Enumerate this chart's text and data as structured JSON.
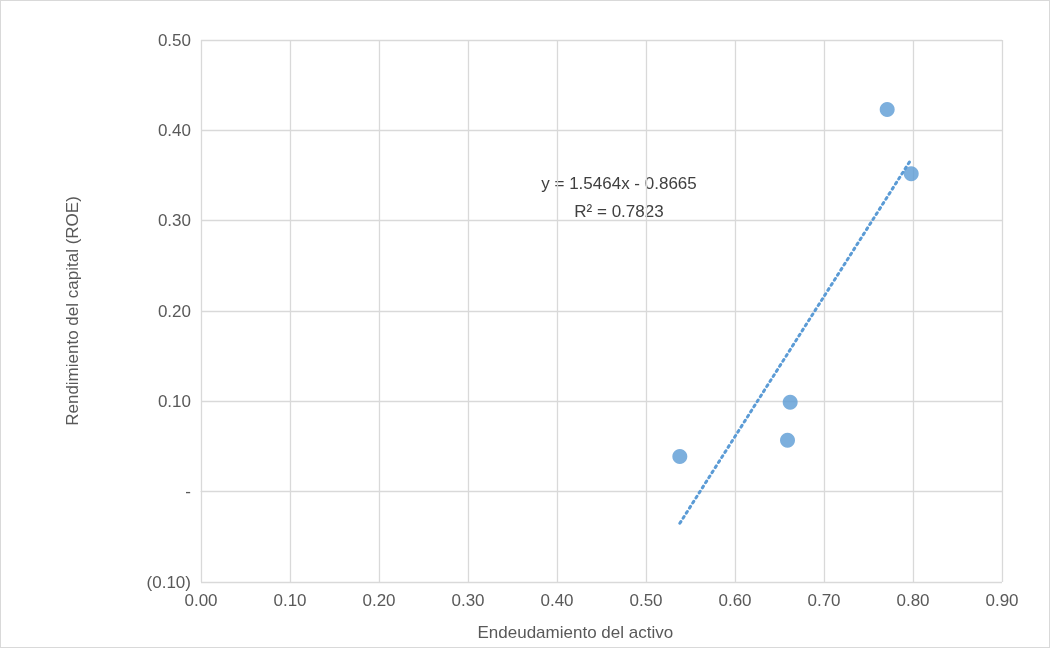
{
  "chart_data": {
    "type": "scatter",
    "xlabel": "Endeudamiento del activo",
    "ylabel": "Rendimiento del capital (ROE)",
    "xlim": [
      0,
      0.9
    ],
    "ylim": [
      -0.1,
      0.5
    ],
    "xticks": [
      {
        "value": 0,
        "label": "0.00"
      },
      {
        "value": 0.1,
        "label": "0.10"
      },
      {
        "value": 0.2,
        "label": "0.20"
      },
      {
        "value": 0.3,
        "label": "0.30"
      },
      {
        "value": 0.4,
        "label": "0.40"
      },
      {
        "value": 0.5,
        "label": "0.50"
      },
      {
        "value": 0.6,
        "label": "0.60"
      },
      {
        "value": 0.7,
        "label": "0.70"
      },
      {
        "value": 0.8,
        "label": "0.80"
      },
      {
        "value": 0.9,
        "label": "0.90"
      }
    ],
    "yticks": [
      {
        "value": -0.1,
        "label": "(0.10)"
      },
      {
        "value": 0,
        "label": "-"
      },
      {
        "value": 0.1,
        "label": "0.10"
      },
      {
        "value": 0.2,
        "label": "0.20"
      },
      {
        "value": 0.3,
        "label": "0.30"
      },
      {
        "value": 0.4,
        "label": "0.40"
      },
      {
        "value": 0.5,
        "label": "0.50"
      }
    ],
    "grid": true,
    "marker": "circle",
    "series": [
      {
        "color": "#5b9bd5",
        "x": [
          0.538,
          0.659,
          0.662,
          0.771,
          0.798
        ],
        "values": [
          0.039,
          0.057,
          0.099,
          0.423,
          0.352
        ]
      },
      {
        "type": "line",
        "color": "#5b9bd5",
        "line_style": "dotted",
        "marker": "none",
        "x": [
          0.538,
          0.798
        ],
        "values": [
          -0.035,
          0.368
        ]
      }
    ],
    "annotations": [
      "y = 1.5464x - 0.8665",
      "R² = 0.7823"
    ]
  }
}
